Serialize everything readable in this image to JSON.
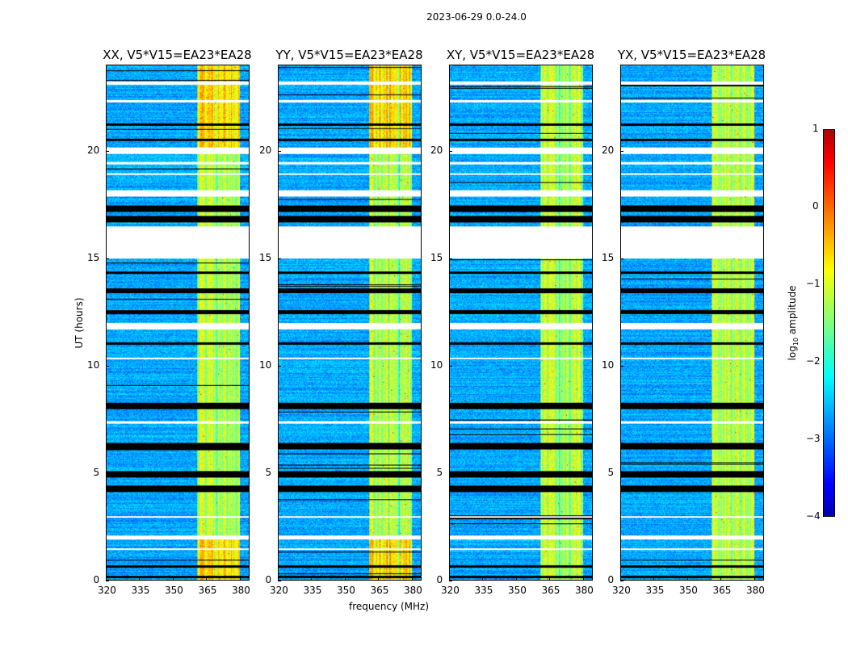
{
  "chart_data": {
    "type": "heatmap",
    "title": "2023-06-29 0.0-24.0",
    "xlabel": "frequency (MHz)",
    "ylabel": "UT (hours)",
    "xlim": [
      320,
      384
    ],
    "ylim": [
      0,
      24
    ],
    "xticks": [
      "320",
      "335",
      "350",
      "365",
      "380"
    ],
    "yticks": [
      "0",
      "5",
      "10",
      "15",
      "20"
    ],
    "panels": [
      {
        "title": "XX, V5*V15=EA23*EA28"
      },
      {
        "title": "YY, V5*V15=EA23*EA28"
      },
      {
        "title": "XY, V5*V15=EA23*EA28"
      },
      {
        "title": "YX, V5*V15=EA23*EA28"
      }
    ],
    "bright_band_mhz": [
      360.5,
      380
    ],
    "colorbar": {
      "label_prefix": "log",
      "label_sub": "10",
      "label_suffix": " amplitude",
      "colormap": "jet",
      "range": [
        -4,
        1
      ],
      "ticks": [
        "1",
        "0",
        "−1",
        "−2",
        "−3",
        "−4"
      ]
    },
    "flagged_white_hours": [
      [
        23.1,
        23.25
      ],
      [
        22.3,
        22.4
      ],
      [
        19.9,
        20.2
      ],
      [
        19.4,
        19.5
      ],
      [
        18.9,
        19.0
      ],
      [
        17.9,
        18.2
      ],
      [
        15.0,
        16.5
      ],
      [
        11.7,
        12.0
      ],
      [
        10.3,
        10.4
      ],
      [
        7.3,
        7.4
      ],
      [
        2.9,
        3.0
      ],
      [
        1.9,
        2.1
      ],
      [
        1.4,
        1.5
      ]
    ],
    "flagged_black_hours": [
      [
        17.2,
        17.5
      ],
      [
        16.7,
        17.0
      ],
      [
        21.2,
        21.3
      ],
      [
        20.5,
        20.6
      ],
      [
        14.3,
        14.4
      ],
      [
        13.4,
        13.6
      ],
      [
        12.4,
        12.6
      ],
      [
        11.0,
        11.1
      ],
      [
        8.0,
        8.3
      ],
      [
        6.1,
        6.4
      ],
      [
        4.8,
        5.1
      ],
      [
        4.1,
        4.4
      ],
      [
        0.6,
        0.7
      ],
      [
        0.1,
        0.2
      ]
    ]
  }
}
